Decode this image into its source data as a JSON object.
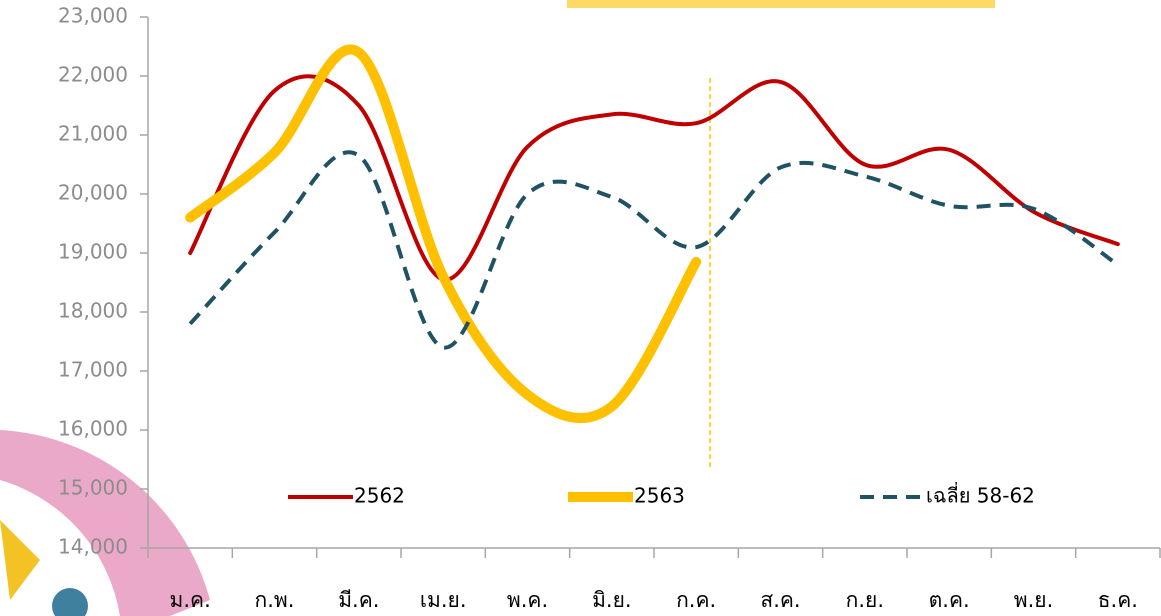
{
  "chart_data": {
    "type": "line",
    "categories": [
      "ม.ค.",
      "ก.พ.",
      "มี.ค.",
      "เม.ย.",
      "พ.ค.",
      "มิ.ย.",
      "ก.ค.",
      "ส.ค.",
      "ก.ย.",
      "ต.ค.",
      "พ.ย.",
      "ธ.ค."
    ],
    "series": [
      {
        "name": "2562",
        "color": "#c00000",
        "values": [
          19000,
          21750,
          21500,
          18550,
          20800,
          21350,
          21200,
          21900,
          20500,
          20750,
          19700,
          19150
        ]
      },
      {
        "name": "2563",
        "color": "#ffc000",
        "values": [
          19600,
          20700,
          22400,
          18600,
          16600,
          16400,
          18850,
          null,
          null,
          null,
          null,
          null
        ]
      },
      {
        "name": "เฉลี่ย 58-62",
        "color": "#1f5263",
        "values": [
          17800,
          19350,
          20650,
          17400,
          20000,
          19950,
          19100,
          20450,
          20300,
          19800,
          19750,
          18800
        ]
      }
    ],
    "ylim": [
      14000,
      23000
    ],
    "yticks": [
      {
        "value": 14000,
        "label": "14,000"
      },
      {
        "value": 15000,
        "label": "15,000"
      },
      {
        "value": 16000,
        "label": "16,000"
      },
      {
        "value": 17000,
        "label": "17,000"
      },
      {
        "value": 18000,
        "label": "18,000"
      },
      {
        "value": 19000,
        "label": "19,000"
      },
      {
        "value": 20000,
        "label": "20,000"
      },
      {
        "value": 21000,
        "label": "21,000"
      },
      {
        "value": 22000,
        "label": "22,000"
      },
      {
        "value": 23000,
        "label": "23,000"
      }
    ],
    "grid": false
  }
}
